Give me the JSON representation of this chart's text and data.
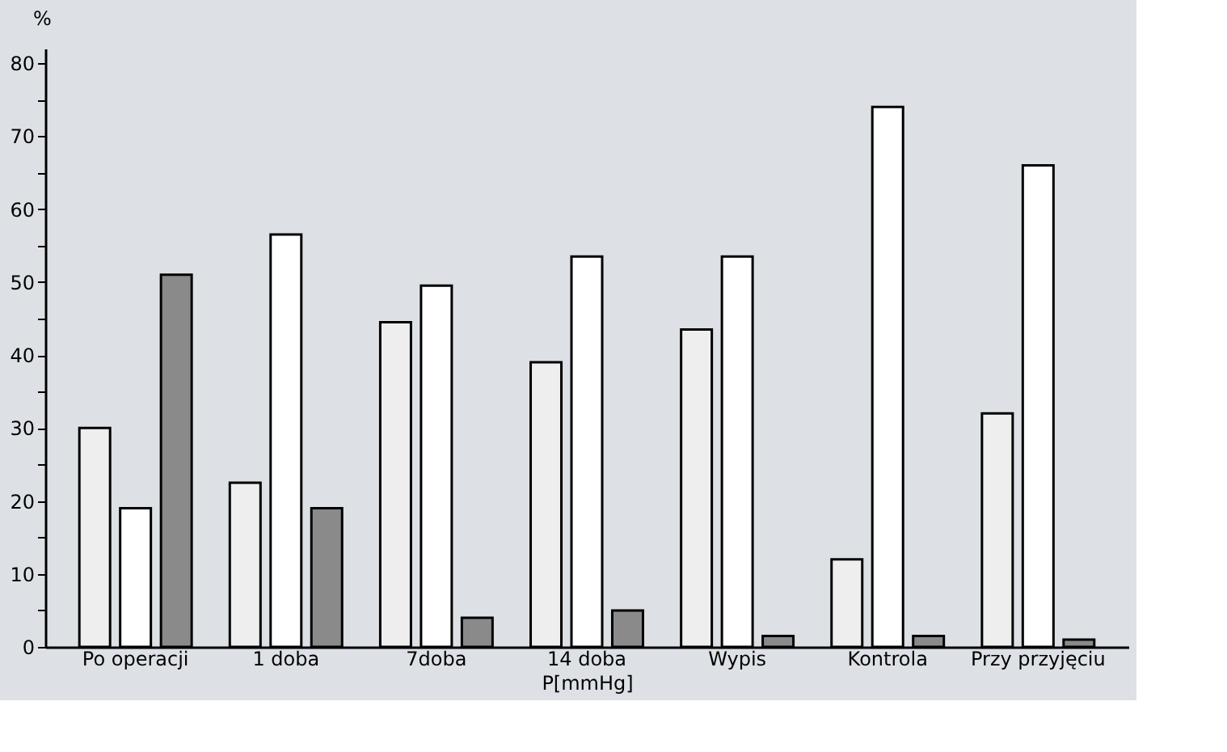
{
  "chart_data": {
    "type": "bar",
    "ylabel": "%",
    "xlabel": "P[mmHg]",
    "categories": [
      "Po operacji",
      "1 doba",
      "7doba",
      "14 doba",
      "Wypis",
      "Kontrola",
      "Przy przyjęciu"
    ],
    "series": [
      {
        "color": "#eeeeee",
        "values": [
          30,
          22.5,
          44.5,
          39,
          43.5,
          12,
          32
        ]
      },
      {
        "color": "#ffffff",
        "values": [
          19,
          56.5,
          49.5,
          53.5,
          53.5,
          74,
          66
        ]
      },
      {
        "color": "#8a8a8a",
        "values": [
          51,
          19,
          4,
          5,
          1.5,
          1.5,
          1
        ]
      }
    ],
    "ylim": [
      0,
      82
    ],
    "yticks": [
      0,
      {
        "value": 5,
        "label": null
      },
      10,
      {
        "value": 15,
        "label": null
      },
      20,
      {
        "value": 25,
        "label": null
      },
      30,
      {
        "value": 35,
        "label": null
      },
      40,
      {
        "value": 45,
        "label": null
      },
      50,
      {
        "value": 55,
        "label": null
      },
      60,
      {
        "value": 65,
        "label": null
      },
      70,
      {
        "value": 75,
        "label": null
      },
      80
    ],
    "grid": false
  }
}
